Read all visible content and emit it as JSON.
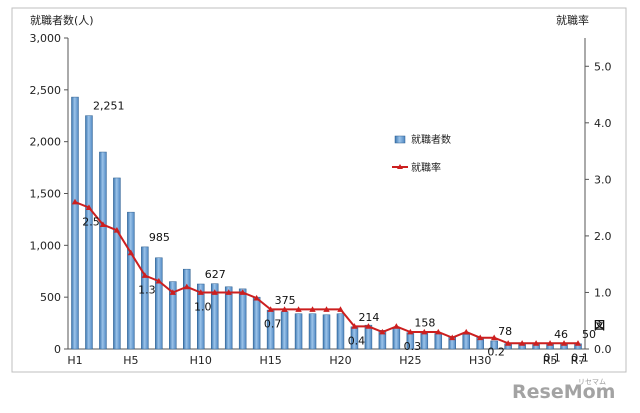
{
  "chart_data": {
    "type": "bar+line",
    "categories": [
      "H1",
      "H2",
      "H3",
      "H4",
      "H5",
      "H6",
      "H7",
      "H8",
      "H9",
      "H10",
      "H11",
      "H12",
      "H13",
      "H14",
      "H15",
      "H16",
      "H17",
      "H18",
      "H19",
      "H20",
      "H21",
      "H22",
      "H23",
      "H24",
      "H25",
      "H26",
      "H27",
      "H28",
      "H29",
      "H30",
      "H31",
      "R2",
      "R3",
      "R4",
      "R5",
      "R6",
      "R7"
    ],
    "x_tick_labels": [
      "H1",
      "H5",
      "H10",
      "H15",
      "H20",
      "H25",
      "H30",
      "R5",
      "R7"
    ],
    "series": [
      {
        "name": "就職者数",
        "type": "bar",
        "axis": "left",
        "color": "#6ba0d0",
        "values": [
          2430,
          2251,
          1900,
          1650,
          1320,
          985,
          880,
          650,
          770,
          627,
          630,
          600,
          580,
          500,
          375,
          360,
          340,
          340,
          330,
          340,
          214,
          230,
          180,
          200,
          158,
          160,
          150,
          120,
          140,
          110,
          78,
          50,
          45,
          45,
          46,
          48,
          50
        ]
      },
      {
        "name": "就職率",
        "type": "line",
        "axis": "right",
        "color": "#cc1f1f",
        "values": [
          2.6,
          2.5,
          2.2,
          2.1,
          1.7,
          1.3,
          1.2,
          1.0,
          1.1,
          1.0,
          1.0,
          1.0,
          1.0,
          0.9,
          0.7,
          0.7,
          0.7,
          0.7,
          0.7,
          0.7,
          0.4,
          0.4,
          0.3,
          0.4,
          0.3,
          0.3,
          0.3,
          0.2,
          0.3,
          0.2,
          0.2,
          0.1,
          0.1,
          0.1,
          0.1,
          0.1,
          0.1
        ]
      }
    ],
    "y_left": {
      "title": "就職者数(人)",
      "ylim": [
        0,
        3000
      ],
      "ticks": [
        0,
        500,
        1000,
        1500,
        2000,
        2500,
        3000
      ],
      "tick_labels": [
        "0",
        "500",
        "1,000",
        "1,500",
        "2,000",
        "2,500",
        "3,000"
      ]
    },
    "y_right": {
      "title": "就職率",
      "ylim": [
        0,
        5.5
      ],
      "ticks": [
        0,
        1,
        2,
        3,
        4,
        5
      ],
      "tick_labels": [
        "0.0",
        "1.0",
        "2.0",
        "3.0",
        "4.0",
        "5.0"
      ]
    },
    "bar_labels": [
      {
        "index": 1,
        "text": "2,251"
      },
      {
        "index": 5,
        "text": "985"
      },
      {
        "index": 9,
        "text": "627"
      },
      {
        "index": 14,
        "text": "375"
      },
      {
        "index": 20,
        "text": "214"
      },
      {
        "index": 24,
        "text": "158"
      },
      {
        "index": 30,
        "text": "78"
      },
      {
        "index": 34,
        "text": "46"
      },
      {
        "index": 36,
        "text": "50"
      }
    ],
    "line_labels": [
      {
        "index": 1,
        "text": "2.5"
      },
      {
        "index": 5,
        "text": "1.3"
      },
      {
        "index": 9,
        "text": "1.0"
      },
      {
        "index": 14,
        "text": "0.7"
      },
      {
        "index": 20,
        "text": "0.4"
      },
      {
        "index": 24,
        "text": "0.3"
      },
      {
        "index": 30,
        "text": "0.2"
      },
      {
        "index": 34,
        "text": "0.1"
      },
      {
        "index": 36,
        "text": "0.1"
      }
    ],
    "legend": {
      "placement": "center-right",
      "items": [
        "就職者数",
        "就職率"
      ]
    },
    "grid": false,
    "figure_mark": "図"
  },
  "watermark": {
    "text_main": "ReseMom",
    "text_sub": "リセマム"
  }
}
